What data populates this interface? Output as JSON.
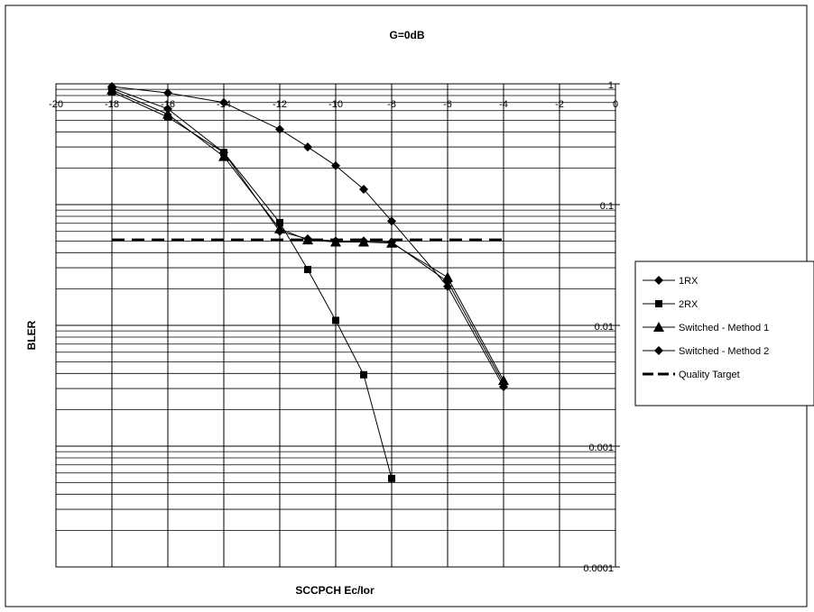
{
  "chart_data": {
    "type": "line",
    "title": "G=0dB",
    "x_label": "SCCPCH Ec/Ior",
    "y_label": "BLER",
    "x": [
      -18,
      -16,
      -14,
      -12,
      -11,
      -10,
      -9,
      -8,
      -6,
      -4
    ],
    "xlim": [
      -20,
      0
    ],
    "xticks": [
      -20,
      -18,
      -16,
      -14,
      -12,
      -10,
      -8,
      -6,
      -4,
      -2,
      0
    ],
    "ylim": [
      0.0001,
      1
    ],
    "yticks": [
      0.0001,
      0.001,
      0.01,
      0.1,
      1
    ],
    "y_scale": "log",
    "grid": true,
    "legend": "right",
    "series": [
      {
        "name": "1RX",
        "color": "#000000",
        "marker": "diamond",
        "dash": false,
        "values": [
          0.95,
          0.84,
          0.7,
          0.42,
          0.3,
          0.21,
          0.134,
          0.073,
          0.021,
          0.0031
        ]
      },
      {
        "name": "2RX",
        "color": "#000000",
        "marker": "square",
        "dash": false,
        "values": [
          0.86,
          0.53,
          0.27,
          0.071,
          0.029,
          0.011,
          0.0039,
          0.00054,
          null,
          null
        ]
      },
      {
        "name": "Switched - Method 1",
        "color": "#000000",
        "marker": "triangle",
        "dash": false,
        "values": [
          0.89,
          0.56,
          0.25,
          0.063,
          0.051,
          0.049,
          0.049,
          0.048,
          0.025,
          0.0035
        ]
      },
      {
        "name": "Switched - Method 2",
        "color": "#000000",
        "marker": "diamond",
        "dash": false,
        "values": [
          0.92,
          0.62,
          0.27,
          0.06,
          0.052,
          0.05,
          0.05,
          0.049,
          0.023,
          0.0033
        ]
      },
      {
        "name": "Quality Target",
        "color": "#000000",
        "marker": "none",
        "dash": true,
        "values": [
          0.051,
          0.051,
          0.051,
          0.051,
          0.051,
          0.051,
          0.051,
          0.051,
          0.051,
          0.051
        ]
      }
    ]
  }
}
